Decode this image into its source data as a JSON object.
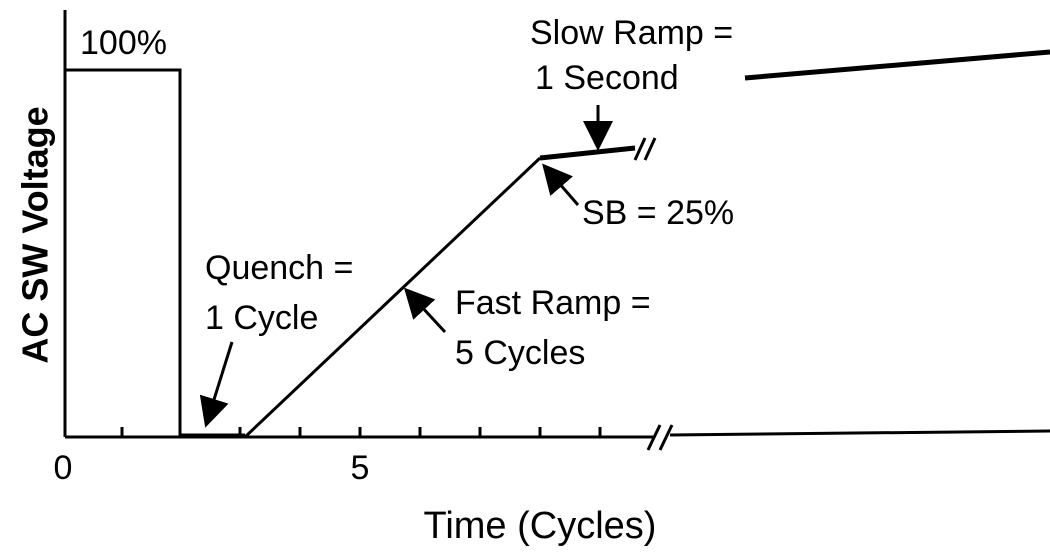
{
  "labels": {
    "pulse": "100%",
    "slow_ramp_1": "Slow Ramp =",
    "slow_ramp_2": "1 Second",
    "sb": "SB = 25%",
    "quench_1": "Quench =",
    "quench_2": "1 Cycle",
    "fast_ramp_1": "Fast Ramp =",
    "fast_ramp_2": "5 Cycles"
  },
  "axes": {
    "y_label": "AC SW Voltage",
    "x_label": "Time (Cycles)",
    "x_ticks": [
      "0",
      "5"
    ]
  }
}
